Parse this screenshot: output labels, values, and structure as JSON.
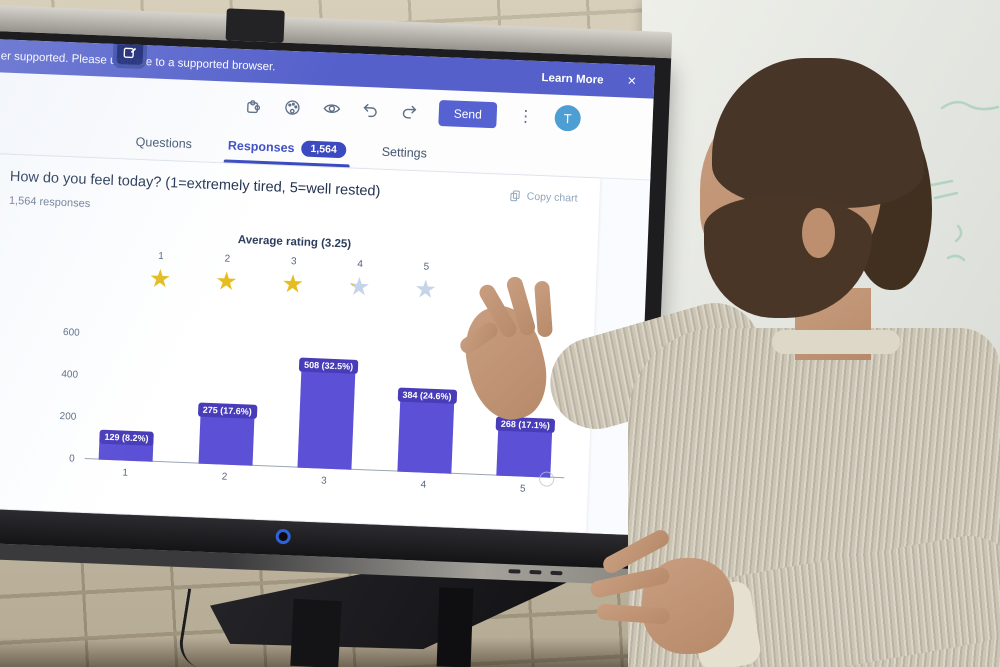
{
  "banner": {
    "message_visible": "er supported. Please upgrade to a supported browser.",
    "learn_more": "Learn More",
    "close_glyph": "×"
  },
  "toolbar": {
    "icons": [
      "add-ons-puzzle-icon",
      "theme-palette-icon",
      "preview-eye-icon",
      "undo-icon",
      "redo-icon"
    ],
    "send_label": "Send",
    "more_glyph": "⋮",
    "avatar_initial": "T"
  },
  "tabs": {
    "items": [
      {
        "label": "Questions",
        "active": false
      },
      {
        "label": "Responses",
        "badge": "1,564",
        "active": true
      },
      {
        "label": "Settings",
        "active": false
      }
    ]
  },
  "question": {
    "title": "How do you feel today? (1=extremely tired, 5=well rested)",
    "responses": "1,564 responses",
    "copy_chart": "Copy chart"
  },
  "rating": {
    "title": "Average rating (3.25)",
    "average": 3.25,
    "star_glyph": "★",
    "stars": [
      {
        "label": "1",
        "fill": 1
      },
      {
        "label": "2",
        "fill": 1
      },
      {
        "label": "3",
        "fill": 1
      },
      {
        "label": "4",
        "fill": 0.25
      },
      {
        "label": "5",
        "fill": 0
      }
    ]
  },
  "chart_data": {
    "type": "bar",
    "title": "How do you feel today? (1=extremely tired, 5=well rested)",
    "categories": [
      "1",
      "2",
      "3",
      "4",
      "5"
    ],
    "values": [
      129,
      275,
      508,
      384,
      268
    ],
    "data_labels": [
      "129 (8.2%)",
      "275 (17.6%)",
      "508 (32.5%)",
      "384 (24.6%)",
      "268 (17.1%)"
    ],
    "percentages": [
      8.2,
      17.6,
      32.5,
      24.6,
      17.1
    ],
    "total_responses": 1564,
    "xlabel": "",
    "ylabel": "",
    "yticks": [
      0,
      200,
      400,
      600
    ],
    "ylim": [
      0,
      600
    ],
    "grid": false,
    "legend": "none",
    "bar_color": "#5b50d6",
    "bar_label_bg": "#483cb8"
  },
  "colors": {
    "banner_bg": "#5560cb",
    "accent": "#3b4ac0",
    "star_filled": "#e5bd20",
    "star_empty": "#c6d4ea",
    "send_bg": "#5661d2",
    "avatar_bg": "#4d9ed2",
    "logo_ring": "#2e62d9"
  }
}
